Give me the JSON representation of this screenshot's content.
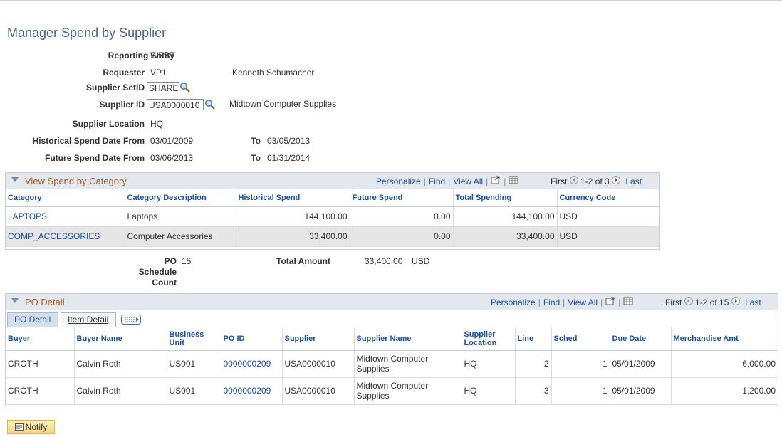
{
  "page": {
    "title": "Manager Spend by Supplier"
  },
  "fields": {
    "reporting_entity_label": "Reporting Entity",
    "reporting_entity_value": "WEST",
    "requester_label": "Requester",
    "requester_value": "VP1",
    "requester_name": "Kenneth Schumacher",
    "supplier_setid_label": "Supplier SetID",
    "supplier_setid_value": "SHARE",
    "supplier_id_label": "Supplier ID",
    "supplier_id_value": "USA0000010",
    "supplier_name": "Midtown Computer Supplies",
    "supplier_location_label": "Supplier Location",
    "supplier_location_value": "HQ",
    "hist_from_label": "Historical Spend Date From",
    "hist_from_value": "03/01/2009",
    "hist_to_label": "To",
    "hist_to_value": "03/05/2013",
    "future_from_label": "Future Spend Date From",
    "future_from_value": "03/06/2013",
    "future_to_label": "To",
    "future_to_value": "01/31/2014"
  },
  "category_grid": {
    "title": "View Spend by Category",
    "personalize": "Personalize",
    "find": "Find",
    "view_all": "View All",
    "first": "First",
    "range": "1-2 of 3",
    "last": "Last",
    "columns": [
      "Category",
      "Category Description",
      "Historical Spend",
      "Future Spend",
      "Total Spending",
      "Currency Code"
    ],
    "rows": [
      {
        "category": "LAPTOPS",
        "description": "Laptops",
        "historical": "144,100.00",
        "future": "0.00",
        "total": "144,100.00",
        "currency": "USD"
      },
      {
        "category": "COMP_ACCESSORIES",
        "description": "Computer Accessories",
        "historical": "33,400.00",
        "future": "0.00",
        "total": "33,400.00",
        "currency": "USD"
      }
    ]
  },
  "summary": {
    "po_count_label_1": "PO",
    "po_count_label_2": "Schedule",
    "po_count_label_3": "Count",
    "po_count_value": "15",
    "total_amount_label": "Total Amount",
    "total_amount_value": "33,400.00",
    "total_amount_currency": "USD"
  },
  "po_grid": {
    "title": "PO Detail",
    "personalize": "Personalize",
    "find": "Find",
    "view_all": "View All",
    "first": "First",
    "range": "1-2 of 15",
    "last": "Last",
    "tabs": [
      "PO Detail",
      "Item Detail"
    ],
    "columns": [
      "Buyer",
      "Buyer Name",
      "Business Unit",
      "PO ID",
      "Supplier",
      "Supplier Name",
      "Supplier Location",
      "Line",
      "Sched",
      "Due Date",
      "Merchandise Amt"
    ],
    "rows": [
      {
        "buyer": "CROTH",
        "buyer_name": "Calvin Roth",
        "bu": "US001",
        "po_id": "0000000209",
        "supplier": "USA0000010",
        "supplier_name": "Midtown Computer Supplies",
        "location": "HQ",
        "line": "2",
        "sched": "1",
        "due": "05/01/2009",
        "amt": "6,000.00"
      },
      {
        "buyer": "CROTH",
        "buyer_name": "Calvin Roth",
        "bu": "US001",
        "po_id": "0000000209",
        "supplier": "USA0000010",
        "supplier_name": "Midtown Computer Supplies",
        "location": "HQ",
        "line": "3",
        "sched": "1",
        "due": "05/01/2009",
        "amt": "1,200.00"
      }
    ]
  },
  "notify_button": "Notify"
}
